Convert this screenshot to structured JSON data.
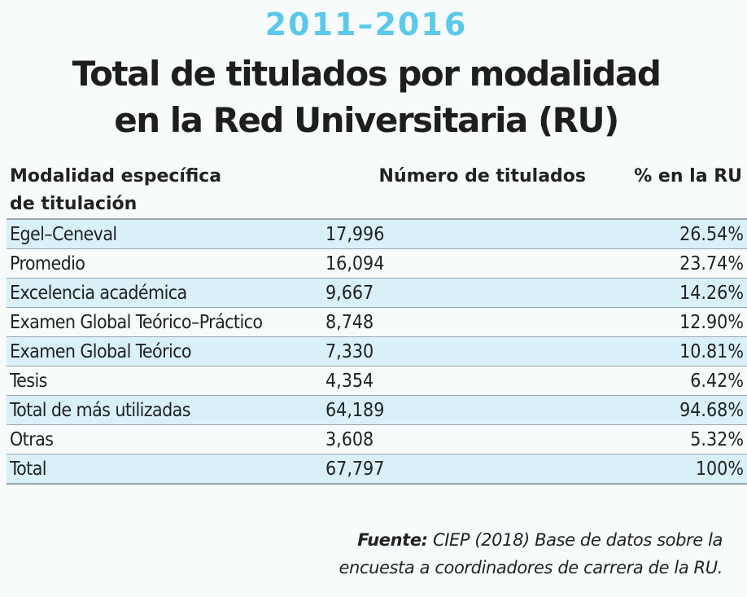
{
  "years": "2011–2016",
  "title_line1": "Total de titulados por modalidad",
  "title_line2": "en la Red Universitaria (RU)",
  "chart_data": {
    "type": "table",
    "columns": [
      "Modalidad específica de titulación",
      "Número de titulados",
      "% en la RU"
    ],
    "column_lines": [
      [
        "Modalidad específica",
        "de titulación"
      ],
      [
        "Número de titulados"
      ],
      [
        "% en la RU"
      ]
    ],
    "rows": [
      {
        "modalidad": "Egel–Ceneval",
        "numero": "17,996",
        "porcentaje": "26.54%",
        "shaded": true
      },
      {
        "modalidad": "Promedio",
        "numero": "16,094",
        "porcentaje": "23.74%",
        "shaded": false
      },
      {
        "modalidad": "Excelencia académica",
        "numero": "9,667",
        "porcentaje": "14.26%",
        "shaded": true
      },
      {
        "modalidad": "Examen Global Teórico–Práctico",
        "numero": "8,748",
        "porcentaje": "12.90%",
        "shaded": false
      },
      {
        "modalidad": "Examen Global Teórico",
        "numero": "7,330",
        "porcentaje": "10.81%",
        "shaded": true
      },
      {
        "modalidad": "Tesis",
        "numero": "4,354",
        "porcentaje": "6.42%",
        "shaded": false
      },
      {
        "modalidad": "Total de más utilizadas",
        "numero": "64,189",
        "porcentaje": "94.68%",
        "shaded": true
      },
      {
        "modalidad": "Otras",
        "numero": "3,608",
        "porcentaje": "5.32%",
        "shaded": false
      },
      {
        "modalidad": "Total",
        "numero": "67,797",
        "porcentaje": "100%",
        "shaded": true
      }
    ]
  },
  "source": {
    "label": "Fuente:",
    "line1": "CIEP (2018) Base de datos sobre la",
    "line2": "encuesta a coordinadores de carrera de la RU."
  },
  "colors": {
    "accent": "#5cc8ea",
    "row_shade": "#d9f0f9",
    "rule": "#9aa4ab",
    "background": "#f7fbfc"
  }
}
